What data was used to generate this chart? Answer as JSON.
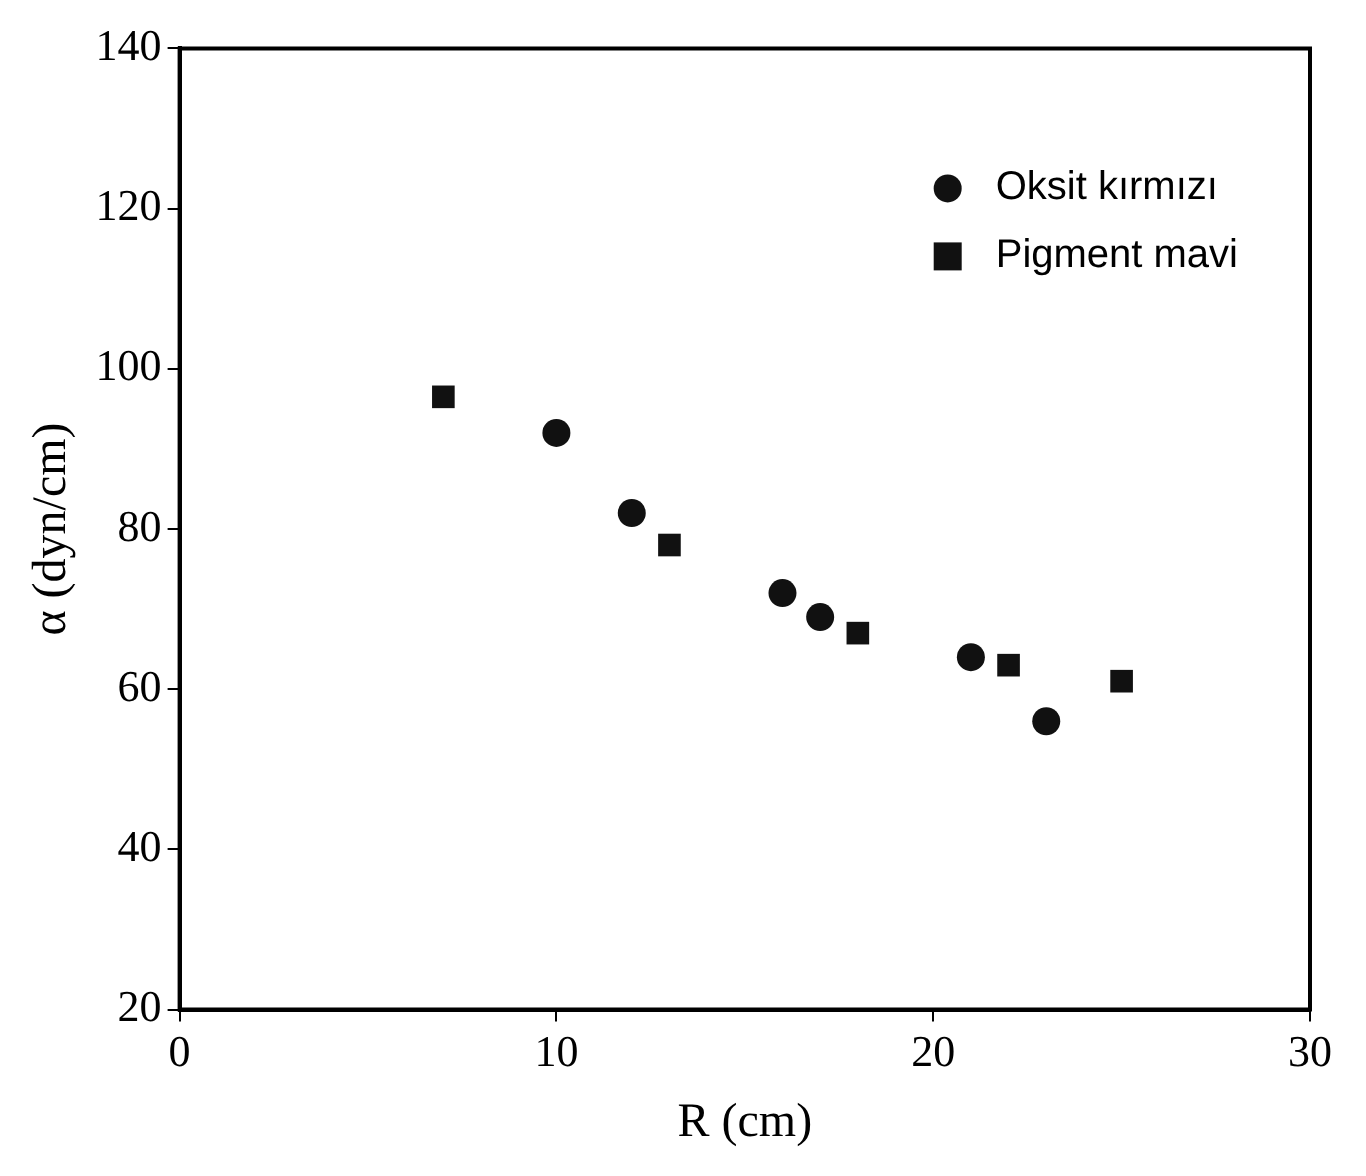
{
  "chart_data": {
    "type": "scatter",
    "xlabel": "R (cm)",
    "ylabel": "α (dyn/cm)",
    "xlim": [
      0,
      30
    ],
    "xticks": [
      0,
      10,
      20,
      30
    ],
    "ylim": [
      20,
      140
    ],
    "yticks": [
      20,
      40,
      60,
      80,
      100,
      120,
      140
    ],
    "legend": "top right",
    "series": [
      {
        "name": "Oksit kırmızı",
        "color": "#111111",
        "marker": "circle",
        "x": [
          10,
          12,
          16,
          17,
          21,
          23
        ],
        "values": [
          92,
          82,
          72,
          69,
          64,
          56
        ]
      },
      {
        "name": "Pigment mavi",
        "color": "#111111",
        "marker": "square",
        "x": [
          7,
          13,
          18,
          22,
          25
        ],
        "values": [
          96.5,
          78,
          67,
          63,
          61
        ]
      }
    ]
  }
}
